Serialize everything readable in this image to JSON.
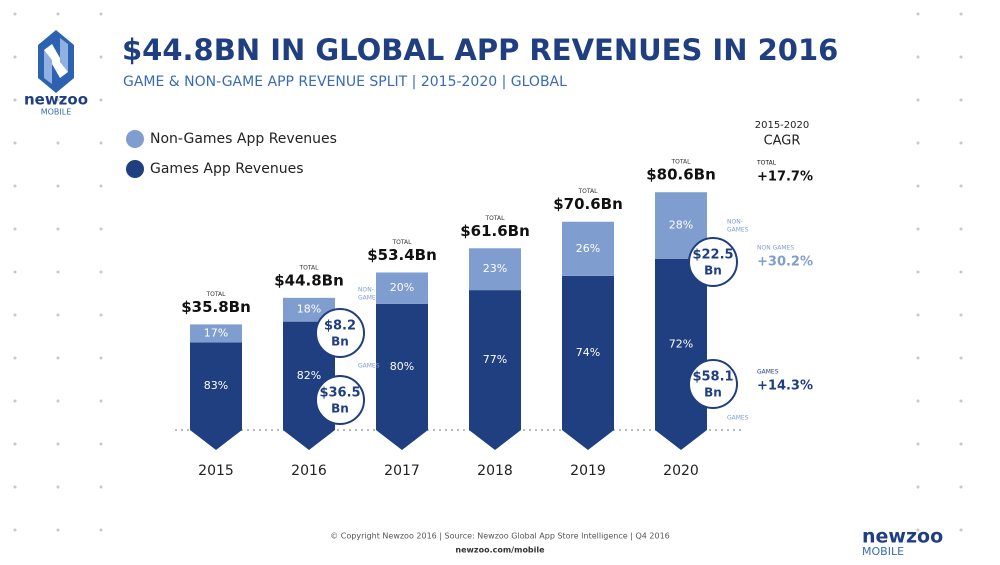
{
  "header": {
    "title": "$44.8BN IN GLOBAL APP REVENUES IN 2016",
    "subtitle": "GAME & NON-GAME APP REVENUE SPLIT | 2015-2020 | GLOBAL"
  },
  "logo": {
    "name": "newzoo",
    "sub": "MOBILE"
  },
  "chart_data": {
    "type": "bar",
    "stacked": true,
    "legend": "top-left",
    "categories": [
      "2015",
      "2016",
      "2017",
      "2018",
      "2019",
      "2020"
    ],
    "series": [
      {
        "name": "Games App Revenues",
        "color": "#1f3f80",
        "values": [
          83,
          82,
          80,
          77,
          74,
          72
        ],
        "value_labels": [
          "83%",
          "82%",
          "80%",
          "77%",
          "74%",
          "72%"
        ]
      },
      {
        "name": "Non-Games App Revenues",
        "color": "#7f9ecf",
        "values": [
          17,
          18,
          20,
          23,
          26,
          28
        ],
        "value_labels": [
          "17%",
          "18%",
          "20%",
          "23%",
          "26%",
          "28%"
        ]
      }
    ],
    "totals": {
      "label": "TOTAL",
      "values": [
        35.8,
        44.8,
        53.4,
        61.6,
        70.6,
        80.6
      ],
      "value_labels": [
        "$35.8Bn",
        "$44.8Bn",
        "$53.4Bn",
        "$61.6Bn",
        "$70.6Bn",
        "$80.6Bn"
      ]
    },
    "callouts": [
      {
        "value": "$8.2",
        "unit": "Bn",
        "tag": [
          "NON-",
          "GAMES"
        ]
      },
      {
        "value": "$36.5",
        "unit": "Bn",
        "tag": [
          "GAMES"
        ]
      },
      {
        "value": "$22.5",
        "unit": "Bn",
        "tag": [
          "NON-",
          "GAMES"
        ]
      },
      {
        "value": "$58.1",
        "unit": "Bn",
        "tag": [
          "GAMES"
        ]
      }
    ]
  },
  "cagr": {
    "title": [
      "2015-2020",
      "CAGR"
    ],
    "rows": [
      {
        "label": "TOTAL",
        "value": "+17.7%",
        "color": "#111111"
      },
      {
        "label": "NON GAMES",
        "value": "+30.2%",
        "color": "#7f9ecf"
      },
      {
        "label": "GAMES",
        "value": "+14.3%",
        "color": "#1f3f80"
      }
    ]
  },
  "footer": {
    "copyright": "© Copyright Newzoo 2016 | Source: Newzoo Global App Store Intelligence | Q4 2016",
    "url": "newzoo.com/mobile",
    "brand": "newzoo",
    "brand_sub": "MOBILE"
  }
}
